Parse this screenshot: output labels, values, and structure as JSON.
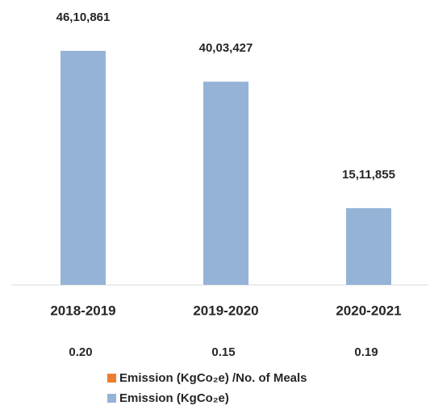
{
  "chart_data": {
    "type": "bar",
    "categories": [
      "2018-2019",
      "2019-2020",
      "2020-2021"
    ],
    "series": [
      {
        "name": "Emission (KgCo₂e) /No. of Meals",
        "color": "#ed7d31",
        "values": [
          0.2,
          0.15,
          0.19
        ],
        "value_labels": [
          "0.20",
          "0.15",
          "0.19"
        ]
      },
      {
        "name": "Emission (KgCo₂e)",
        "color": "#95b3d7",
        "values": [
          4610861,
          4003427,
          1511855
        ],
        "value_labels": [
          "46,10,861",
          "40,03,427",
          "15,11,855"
        ]
      }
    ]
  }
}
